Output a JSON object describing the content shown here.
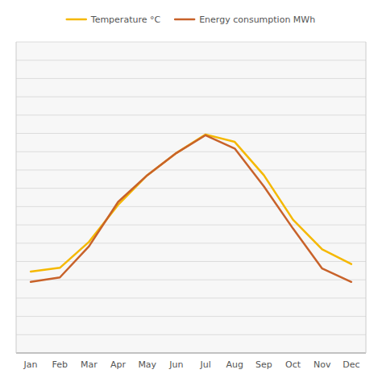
{
  "chart_data": {
    "type": "line",
    "categories": [
      "Jan",
      "Feb",
      "Mar",
      "Apr",
      "May",
      "Jun",
      "Jul",
      "Aug",
      "Sep",
      "Oct",
      "Nov",
      "Dec"
    ],
    "series": [
      {
        "name": "Temperature °C",
        "color": "#F5B800",
        "axis": "y",
        "values": [
          1,
          1.5,
          5,
          10,
          14,
          17,
          19.5,
          18.5,
          14,
          8,
          4,
          2
        ]
      },
      {
        "name": "Energy consumption MWh",
        "color": "#C8622A",
        "axis": "y2",
        "values": [
          22,
          24,
          38,
          58,
          70,
          80,
          88,
          82,
          65,
          46,
          28,
          22
        ]
      }
    ],
    "ylim": [
      -10,
      32
    ],
    "yticks": [
      -10,
      -7.529411764705882,
      -5.058823529411764,
      -2.5882352941176467,
      -0.117647058823529,
      2.352941176470589,
      4.823529411764707,
      7.294117647058824,
      9.764705882352942,
      12.23529411764706,
      14.705882352941178,
      17.176470588235297,
      19.647058823529413,
      22.11764705882353,
      24.58823529411765,
      27.058823529411768,
      29.529411764705884,
      32.0
    ],
    "y2lim": [
      -10,
      130
    ],
    "grid": true,
    "legend": "top",
    "tick_labels": "x"
  }
}
